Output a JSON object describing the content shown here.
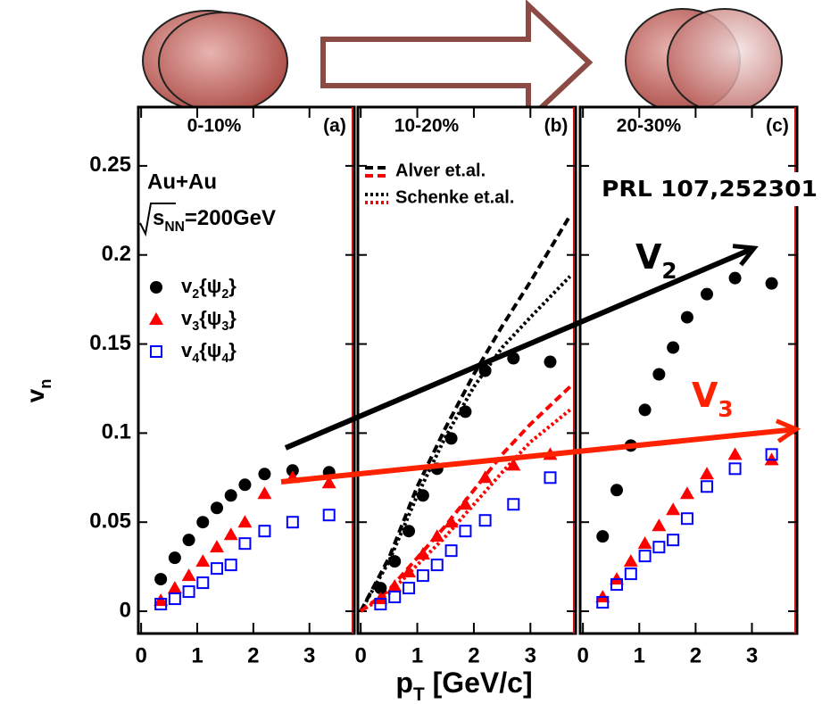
{
  "chart_data": [
    {
      "type": "scatter",
      "title": "0-10%",
      "panel_label": "(a)",
      "xlim": [
        -0.05,
        3.8
      ],
      "xticks": [
        0,
        1,
        2,
        3
      ],
      "ylim": [
        -0.0125,
        0.283
      ],
      "yticks": [
        0,
        0.05,
        0.1,
        0.15,
        0.2,
        0.25
      ],
      "ylabel": {
        "main": "v",
        "sub": "n"
      },
      "system": "Au+Au",
      "energy": {
        "var": "s",
        "sub": "NN",
        "rest": "=200GeV"
      },
      "x": [
        0.35,
        0.6,
        0.85,
        1.1,
        1.35,
        1.6,
        1.85,
        2.2,
        2.7,
        3.35
      ],
      "series": [
        {
          "name": {
            "main": "v",
            "sub": "2",
            "mid": "{ψ",
            "sub2": "2",
            "end": "}"
          },
          "color": "#000000",
          "marker": "circle",
          "values": [
            0.018,
            0.03,
            0.04,
            0.05,
            0.058,
            0.065,
            0.071,
            0.077,
            0.079,
            0.078
          ]
        },
        {
          "name": {
            "main": "v",
            "sub": "3",
            "mid": "{ψ",
            "sub2": "3",
            "end": "}"
          },
          "color": "#ff0000",
          "marker": "triangle",
          "values": [
            0.006,
            0.013,
            0.02,
            0.028,
            0.036,
            0.043,
            0.05,
            0.066,
            0.075,
            0.072
          ]
        },
        {
          "name": {
            "main": "v",
            "sub": "4",
            "mid": "{ψ",
            "sub2": "4",
            "end": "}"
          },
          "color": "#0000ff",
          "marker": "square",
          "values": [
            0.004,
            0.007,
            0.011,
            0.016,
            0.024,
            0.026,
            0.038,
            0.045,
            0.05,
            0.054
          ]
        }
      ]
    },
    {
      "type": "scatter",
      "title": "10-20%",
      "panel_label": "(b)",
      "xlim": [
        -0.05,
        3.8
      ],
      "xticks": [
        0,
        1,
        2,
        3
      ],
      "ylim": [
        -0.0125,
        0.283
      ],
      "yticks": [
        0,
        0.05,
        0.1,
        0.15,
        0.2,
        0.25
      ],
      "xlabel": {
        "main": "p",
        "sub": "T",
        "rest": " [GeV/c]"
      },
      "x": [
        0.35,
        0.6,
        0.85,
        1.1,
        1.35,
        1.6,
        1.85,
        2.2,
        2.7,
        3.35
      ],
      "series": [
        {
          "color": "#000000",
          "marker": "circle",
          "values": [
            0.013,
            0.028,
            0.045,
            0.065,
            0.08,
            0.097,
            0.112,
            0.135,
            0.142,
            0.14
          ]
        },
        {
          "color": "#ff0000",
          "marker": "triangle",
          "values": [
            0.007,
            0.014,
            0.022,
            0.032,
            0.042,
            0.05,
            0.06,
            0.075,
            0.082,
            0.088
          ]
        },
        {
          "color": "#0000ff",
          "marker": "square",
          "values": [
            0.004,
            0.008,
            0.013,
            0.02,
            0.026,
            0.034,
            0.045,
            0.051,
            0.06,
            0.075
          ]
        }
      ],
      "model_x": [
        0,
        0.5,
        1,
        1.5,
        2,
        2.5,
        3,
        3.7
      ],
      "models": [
        {
          "name": "Alver et.al.",
          "color": "#000000",
          "dash": "dashed",
          "values": [
            0,
            0.03,
            0.07,
            0.103,
            0.133,
            0.16,
            0.185,
            0.222
          ]
        },
        {
          "name": "Schenke et.al.",
          "color": "#000000",
          "dash": "dotted",
          "values": [
            0,
            0.028,
            0.065,
            0.098,
            0.126,
            0.148,
            0.165,
            0.188
          ]
        },
        {
          "color": "#ff0000",
          "dash": "dashed",
          "values": [
            0,
            0.012,
            0.03,
            0.048,
            0.068,
            0.088,
            0.105,
            0.126
          ]
        },
        {
          "color": "#ff0000",
          "dash": "dotted",
          "values": [
            0,
            0.01,
            0.026,
            0.042,
            0.06,
            0.078,
            0.095,
            0.113
          ]
        }
      ]
    },
    {
      "type": "scatter",
      "title": "20-30%",
      "panel_label": "(c)",
      "xlim": [
        -0.05,
        3.8
      ],
      "xticks": [
        0,
        1,
        2,
        3
      ],
      "ylim": [
        -0.0125,
        0.283
      ],
      "yticks": [
        0,
        0.05,
        0.1,
        0.15,
        0.2,
        0.25
      ],
      "x": [
        0.35,
        0.6,
        0.85,
        1.1,
        1.35,
        1.6,
        1.85,
        2.2,
        2.7,
        3.35
      ],
      "series": [
        {
          "color": "#000000",
          "marker": "circle",
          "values": [
            0.042,
            0.068,
            0.093,
            0.113,
            0.133,
            0.148,
            0.165,
            0.178,
            0.187,
            0.184
          ]
        },
        {
          "color": "#ff0000",
          "marker": "triangle",
          "values": [
            0.008,
            0.018,
            0.028,
            0.038,
            0.048,
            0.057,
            0.066,
            0.077,
            0.088,
            0.085
          ]
        },
        {
          "color": "#0000ff",
          "marker": "square",
          "values": [
            0.005,
            0.015,
            0.021,
            0.031,
            0.036,
            0.04,
            0.052,
            0.07,
            0.08,
            0.088
          ]
        }
      ]
    }
  ],
  "overlay": {
    "reference": "PRL 107,252301",
    "arrows": [
      {
        "main": "V",
        "sub": "2",
        "color": "#000000"
      },
      {
        "main": "V",
        "sub": "3",
        "color": "#ff2200"
      }
    ]
  }
}
